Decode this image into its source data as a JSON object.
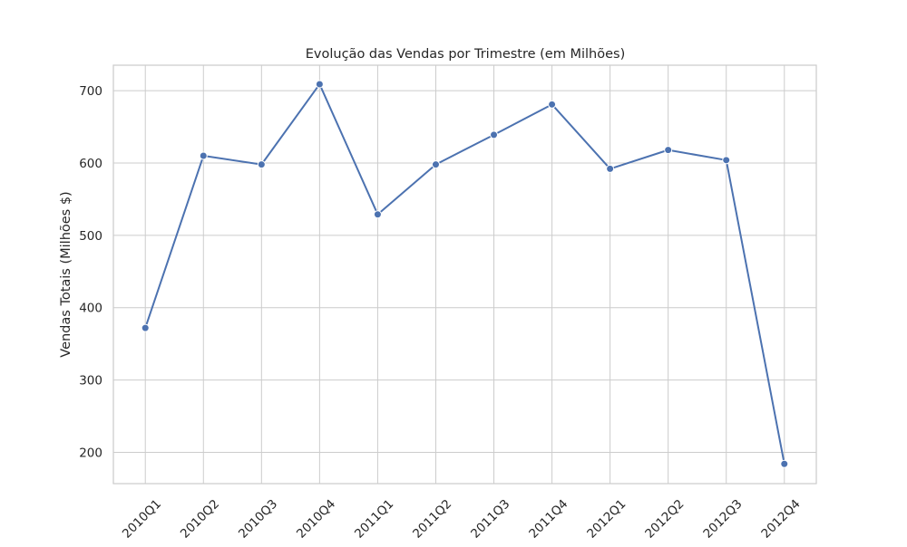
{
  "chart_data": {
    "type": "line",
    "title": "Evolução das Vendas por Trimestre (em Milhões)",
    "xlabel": "",
    "ylabel": "Vendas Totais (Milhões $)",
    "categories": [
      "2010Q1",
      "2010Q2",
      "2010Q3",
      "2010Q4",
      "2011Q1",
      "2011Q2",
      "2011Q3",
      "2011Q4",
      "2012Q1",
      "2012Q2",
      "2012Q3",
      "2012Q4"
    ],
    "series": [
      {
        "values": [
          372,
          610,
          598,
          709,
          529,
          598,
          639,
          681,
          592,
          618,
          604,
          184
        ],
        "color": "#4c72b0"
      }
    ],
    "y_ticks": [
      200,
      300,
      400,
      500,
      600,
      700
    ],
    "ylim": [
      156.75,
      735.25
    ],
    "grid": true,
    "legend": "none"
  }
}
